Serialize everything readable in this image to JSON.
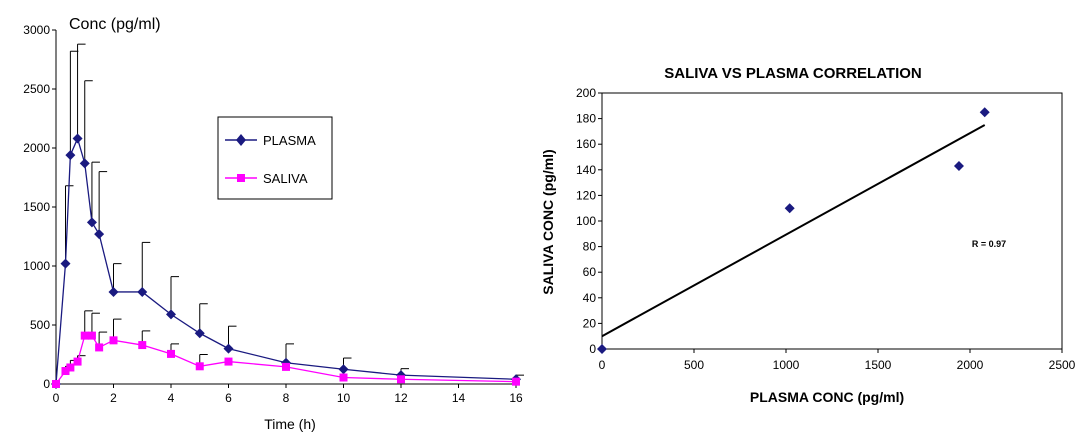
{
  "chart_data": [
    {
      "type": "line",
      "title": "",
      "ylabel": "Conc (pg/ml)",
      "xlabel": "Time (h)",
      "xlim": [
        0,
        16
      ],
      "ylim": [
        0,
        3000
      ],
      "xticks": [
        "0",
        "2",
        "4",
        "6",
        "8",
        "10",
        "12",
        "14",
        "16"
      ],
      "yticks": [
        "0",
        "500",
        "1000",
        "1500",
        "2000",
        "2500",
        "3000"
      ],
      "grid": false,
      "legend_position": "center-right",
      "series": [
        {
          "name": "PLASMA",
          "color": "#1a1a80",
          "marker": "diamond",
          "x": [
            0,
            0.33,
            0.5,
            0.75,
            1,
            1.25,
            1.5,
            2,
            3,
            4,
            5,
            6,
            8,
            10,
            12,
            16
          ],
          "y": [
            0,
            1020,
            1940,
            2080,
            1870,
            1370,
            1270,
            780,
            780,
            590,
            430,
            300,
            180,
            125,
            75,
            40
          ],
          "error_upper": [
            0,
            1680,
            2820,
            2880,
            2570,
            1880,
            1800,
            1020,
            1200,
            910,
            680,
            490,
            340,
            220,
            130,
            75
          ]
        },
        {
          "name": "SALIVA",
          "color": "#ff00ff",
          "marker": "square",
          "x": [
            0,
            0.33,
            0.5,
            0.75,
            1,
            1.25,
            1.5,
            2,
            3,
            4,
            5,
            6,
            8,
            10,
            12,
            16
          ],
          "y": [
            0,
            110,
            140,
            190,
            410,
            410,
            310,
            370,
            330,
            255,
            150,
            190,
            145,
            55,
            40,
            20
          ],
          "error_upper": [
            0,
            150,
            200,
            240,
            620,
            600,
            440,
            550,
            450,
            340,
            250,
            0,
            0,
            0,
            0,
            0
          ]
        }
      ]
    },
    {
      "type": "scatter",
      "title": "SALIVA VS PLASMA CORRELATION",
      "xlabel": "PLASMA CONC (pg/ml)",
      "ylabel": "SALIVA CONC (pg/ml)",
      "xlim": [
        0,
        2500
      ],
      "ylim": [
        0,
        200
      ],
      "xticks": [
        "0",
        "500",
        "1000",
        "1500",
        "2000",
        "2500"
      ],
      "yticks": [
        "0",
        "20",
        "40",
        "60",
        "80",
        "100",
        "120",
        "140",
        "160",
        "180",
        "200"
      ],
      "grid": false,
      "annotation": "R = 0.97",
      "series": [
        {
          "color": "#1a1a80",
          "marker": "diamond",
          "x": [
            0,
            1020,
            1940,
            2080
          ],
          "y": [
            0,
            110,
            143,
            185
          ]
        }
      ],
      "trendline": {
        "x": [
          0,
          2080
        ],
        "y": [
          10,
          175
        ]
      }
    }
  ]
}
